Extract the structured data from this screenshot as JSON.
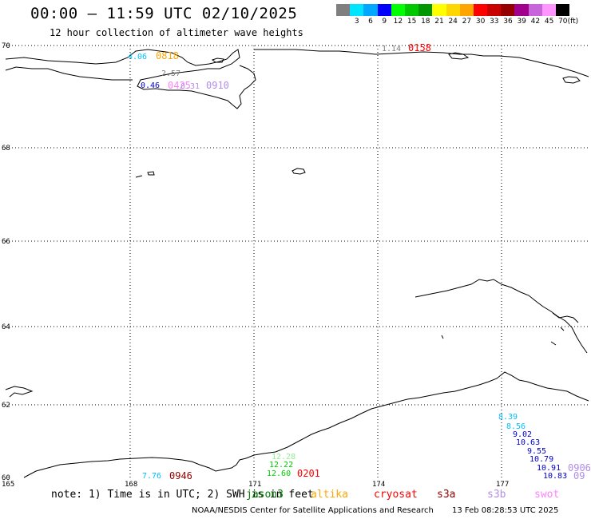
{
  "header": {
    "title": "00:00 – 11:59 UTC 02/10/2025",
    "subtitle": "12 hour collection of altimeter wave heights"
  },
  "legend": {
    "unit": "(ft)",
    "bins": [
      {
        "label": "",
        "color": "#7f7f7f"
      },
      {
        "label": "3",
        "color": "#00e5ff"
      },
      {
        "label": "6",
        "color": "#00a6ff"
      },
      {
        "label": "9",
        "color": "#0000ff"
      },
      {
        "label": "12",
        "color": "#00ff00"
      },
      {
        "label": "15",
        "color": "#00c800"
      },
      {
        "label": "18",
        "color": "#009600"
      },
      {
        "label": "21",
        "color": "#ffff00"
      },
      {
        "label": "24",
        "color": "#ffd700"
      },
      {
        "label": "27",
        "color": "#ffa500"
      },
      {
        "label": "30",
        "color": "#ff0000"
      },
      {
        "label": "33",
        "color": "#c80000"
      },
      {
        "label": "36",
        "color": "#960000"
      },
      {
        "label": "39",
        "color": "#a0008c"
      },
      {
        "label": "42",
        "color": "#c864dc"
      },
      {
        "label": "45",
        "color": "#ff96ff"
      },
      {
        "label": "70",
        "color": "#000000"
      }
    ]
  },
  "map": {
    "lat_labels": [
      "70",
      "68",
      "66",
      "64",
      "62",
      "60"
    ],
    "lon_labels": [
      "165",
      "168",
      "171",
      "174",
      "177"
    ],
    "observations": [
      {
        "text": "4.06",
        "color": "#00bfff"
      },
      {
        "text": "0818",
        "color": "#ffa500"
      },
      {
        "text": "2.57",
        "color": "#7f7f7f"
      },
      {
        "text": "0.46",
        "color": "#0000cd"
      },
      {
        "text": "0425",
        "color": "#ff80ff"
      },
      {
        "text": "0.31",
        "color": "#b28ee8"
      },
      {
        "text": "0910",
        "color": "#b28ee8"
      },
      {
        "text": "1.14",
        "color": "#7f7f7f"
      },
      {
        "text": "0158",
        "color": "#ff0000"
      },
      {
        "text": "8.39",
        "color": "#00bfff"
      },
      {
        "text": "8.56",
        "color": "#00bfff"
      },
      {
        "text": "9.02",
        "color": "#0000cd"
      },
      {
        "text": "10.63",
        "color": "#0000cd"
      },
      {
        "text": "9.55",
        "color": "#0000cd"
      },
      {
        "text": "10.79",
        "color": "#0000cd"
      },
      {
        "text": "10.91",
        "color": "#0000cd"
      },
      {
        "text": "10.83",
        "color": "#0000cd"
      },
      {
        "text": "0906",
        "color": "#b28ee8"
      },
      {
        "text": "09",
        "color": "#b28ee8"
      },
      {
        "text": "7.76",
        "color": "#00bfff"
      },
      {
        "text": "0946",
        "color": "#960000"
      },
      {
        "text": "12.28",
        "color": "#90ee90"
      },
      {
        "text": "12.22",
        "color": "#00cc00"
      },
      {
        "text": "12.60",
        "color": "#00cc00"
      },
      {
        "text": "0201",
        "color": "#ff0000"
      }
    ]
  },
  "footer": {
    "note": "note: 1) Time is in UTC; 2) SWH is in feet",
    "satellites": [
      {
        "name": "jason3",
        "color": "#008000"
      },
      {
        "name": "altika",
        "color": "#ffa500"
      },
      {
        "name": "cryosat",
        "color": "#ff0000"
      },
      {
        "name": "s3a",
        "color": "#960000"
      },
      {
        "name": "s3b",
        "color": "#b28ee8"
      },
      {
        "name": "swot",
        "color": "#ff80ff"
      }
    ],
    "credit": "NOAA/NESDIS Center for Satellite Applications and Research",
    "timestamp": "13 Feb 08:28:53 UTC 2025"
  }
}
